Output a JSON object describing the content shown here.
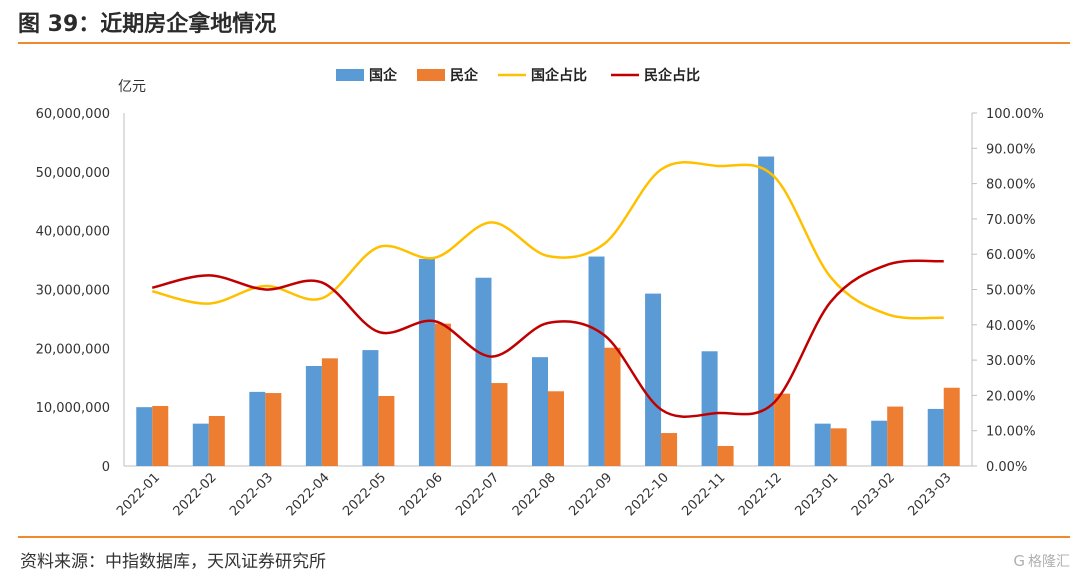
{
  "header": {
    "title": "图 39：近期房企拿地情况"
  },
  "footer": {
    "source": "资料来源：中指数据库，天风证券研究所",
    "watermark": "格隆汇",
    "watermark_icon": "G"
  },
  "chart_data": {
    "type": "bar",
    "categories": [
      "2022-01",
      "2022-02",
      "2022-03",
      "2022-04",
      "2022-05",
      "2022-06",
      "2022-07",
      "2022-08",
      "2022-09",
      "2022-10",
      "2022-11",
      "2022-12",
      "2023-01",
      "2023-02",
      "2023-03"
    ],
    "y_unit_label": "亿元",
    "ylim": [
      0,
      60000000
    ],
    "yticks": [
      "0",
      "10,000,000",
      "20,000,000",
      "30,000,000",
      "40,000,000",
      "50,000,000",
      "60,000,000"
    ],
    "y2lim": [
      0,
      100
    ],
    "y2ticks": [
      "0.00%",
      "10.00%",
      "20.00%",
      "30.00%",
      "40.00%",
      "50.00%",
      "60.00%",
      "70.00%",
      "80.00%",
      "90.00%",
      "100.00%"
    ],
    "grid": false,
    "legend_position": "top-center",
    "series": [
      {
        "name": "国企",
        "kind": "bar",
        "axis": "left",
        "color": "#5b9bd5",
        "values": [
          10000000,
          7200000,
          12600000,
          17000000,
          19700000,
          35200000,
          32000000,
          18500000,
          35600000,
          29300000,
          19500000,
          52600000,
          7200000,
          7700000,
          9700000
        ]
      },
      {
        "name": "民企",
        "kind": "bar",
        "axis": "left",
        "color": "#ed7d31",
        "values": [
          10200000,
          8500000,
          12400000,
          18300000,
          11900000,
          24200000,
          14100000,
          12700000,
          20100000,
          5600000,
          3400000,
          12300000,
          6400000,
          10100000,
          13300000
        ]
      },
      {
        "name": "国企占比",
        "kind": "line",
        "axis": "right",
        "color": "#ffc000",
        "values": [
          49.5,
          46,
          51,
          47.5,
          62,
          59,
          69,
          59.5,
          63,
          84,
          85,
          82,
          53.5,
          43,
          42
        ]
      },
      {
        "name": "民企占比",
        "kind": "line",
        "axis": "right",
        "color": "#c00000",
        "values": [
          50.5,
          54,
          50,
          52,
          38,
          41,
          31,
          40.5,
          37,
          16,
          15,
          18,
          46.5,
          57,
          58
        ]
      }
    ]
  }
}
